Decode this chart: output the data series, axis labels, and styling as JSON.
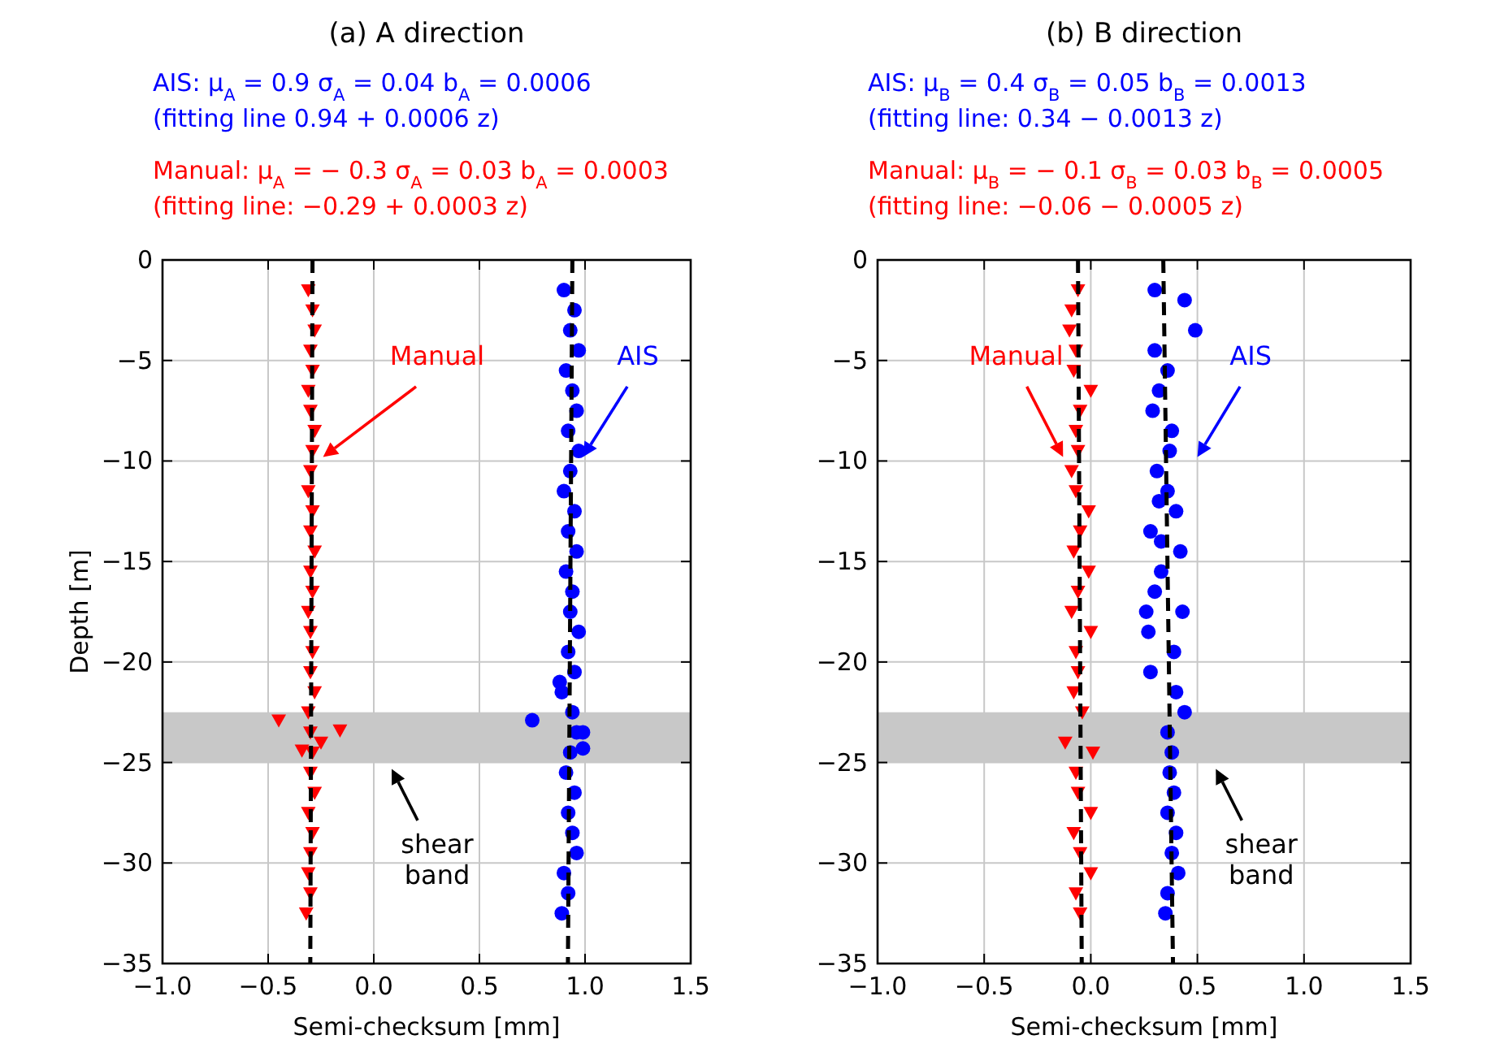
{
  "chart_data": [
    {
      "type": "scatter",
      "title": "(a) A direction",
      "xlabel": "Semi-checksum [mm]",
      "ylabel": "Depth [m]",
      "annotations": [
        "AIS: μ$_{A}$ = 0.9 σ$_{A}$ = 0.04 b$_{A}$ = 0.0006",
        "(fitting line 0.94 + 0.0006 z)",
        "Manual: μ$_{A}$ = − 0.3 σ$_{A}$ = 0.03 b$_{A}$ = 0.0003",
        "(fitting line: −0.29 + 0.0003 z)",
        "shear band"
      ],
      "xlim": [
        -1,
        1.5
      ],
      "xticks": [
        {
          "value": -1,
          "label": "−1.0"
        },
        {
          "value": -0.5,
          "label": "−0.5"
        },
        {
          "value": 0,
          "label": "0.0"
        },
        {
          "value": 0.5,
          "label": "0.5"
        },
        {
          "value": 1,
          "label": "1.0"
        },
        {
          "value": 1.5,
          "label": "1.5"
        }
      ],
      "ylim": [
        -35,
        0
      ],
      "yticks": [
        {
          "value": -35,
          "label": "−35"
        },
        {
          "value": -30,
          "label": "−30"
        },
        {
          "value": -25,
          "label": "−25"
        },
        {
          "value": -20,
          "label": "−20"
        },
        {
          "value": -15,
          "label": "−15"
        },
        {
          "value": -10,
          "label": "−10"
        },
        {
          "value": -5,
          "label": "−5"
        },
        0
      ],
      "grid": true,
      "bands": [
        {
          "axis": "y",
          "from": -25,
          "to": -22.5,
          "color": "#c8c8c8"
        }
      ],
      "series": [
        {
          "name": "AIS",
          "type": "scatter",
          "color": "#0000ff",
          "marker": "circle",
          "x": [
            0.9,
            0.95,
            0.93,
            0.97,
            0.91,
            0.94,
            0.96,
            0.92,
            0.97,
            0.93,
            0.9,
            0.95,
            0.92,
            0.96,
            0.91,
            0.94,
            0.93,
            0.97,
            0.92,
            0.95,
            0.89,
            0.94,
            0.96,
            0.93,
            0.91,
            0.95,
            0.92,
            0.94,
            0.96,
            0.9,
            0.92,
            0.89,
            0.75,
            0.99,
            0.99,
            0.88
          ],
          "values": [
            -1.5,
            -2.5,
            -3.5,
            -4.5,
            -5.5,
            -6.5,
            -7.5,
            -8.5,
            -9.5,
            -10.5,
            -11.5,
            -12.5,
            -13.5,
            -14.5,
            -15.5,
            -16.5,
            -17.5,
            -18.5,
            -19.5,
            -20.5,
            -21.5,
            -22.5,
            -23.5,
            -24.5,
            -25.5,
            -26.5,
            -27.5,
            -28.5,
            -29.5,
            -30.5,
            -31.5,
            -32.5,
            -22.9,
            -23.5,
            -24.3,
            -21.0
          ]
        },
        {
          "name": "Manual",
          "type": "scatter",
          "color": "#ff0000",
          "marker": "triangle",
          "x": [
            -0.31,
            -0.29,
            -0.28,
            -0.3,
            -0.29,
            -0.31,
            -0.3,
            -0.28,
            -0.29,
            -0.3,
            -0.31,
            -0.29,
            -0.3,
            -0.28,
            -0.3,
            -0.29,
            -0.31,
            -0.3,
            -0.29,
            -0.3,
            -0.28,
            -0.31,
            -0.3,
            -0.29,
            -0.3,
            -0.28,
            -0.31,
            -0.29,
            -0.3,
            -0.31,
            -0.3,
            -0.32,
            -0.45,
            -0.25,
            -0.16,
            -0.34
          ],
          "values": [
            -1.5,
            -2.5,
            -3.5,
            -4.5,
            -5.5,
            -6.5,
            -7.5,
            -8.5,
            -9.5,
            -10.5,
            -11.5,
            -12.5,
            -13.5,
            -14.5,
            -15.5,
            -16.5,
            -17.5,
            -18.5,
            -19.5,
            -20.5,
            -21.5,
            -22.5,
            -23.5,
            -24.5,
            -25.5,
            -26.5,
            -27.5,
            -28.5,
            -29.5,
            -30.5,
            -31.5,
            -32.5,
            -22.9,
            -24.0,
            -23.4,
            -24.4
          ]
        },
        {
          "type": "line",
          "color": "#000000",
          "line_style": "dashed",
          "x": [
            0.94,
            0.919
          ],
          "values": [
            0,
            -35
          ]
        },
        {
          "type": "line",
          "color": "#000000",
          "line_style": "dashed",
          "x": [
            -0.29,
            -0.3005
          ],
          "values": [
            0,
            -35
          ]
        }
      ]
    },
    {
      "type": "scatter",
      "title": "(b) B direction",
      "xlabel": "Semi-checksum [mm]",
      "annotations": [
        "AIS: μ$_{B}$ = 0.4 σ$_{B}$ = 0.05 b$_{B}$ = 0.0013",
        "(fitting line: 0.34 − 0.0013 z)",
        "Manual: μ$_{B}$ = − 0.1 σ$_{B}$ = 0.03 b$_{B}$ = 0.0005",
        "(fitting line: −0.06 − 0.0005 z)",
        "shear band"
      ],
      "xlim": [
        -1,
        1.5
      ],
      "xticks": [
        {
          "value": -1,
          "label": "−1.0"
        },
        {
          "value": -0.5,
          "label": "−0.5"
        },
        {
          "value": 0,
          "label": "0.0"
        },
        {
          "value": 0.5,
          "label": "0.5"
        },
        {
          "value": 1,
          "label": "1.0"
        },
        {
          "value": 1.5,
          "label": "1.5"
        }
      ],
      "ylim": [
        -35,
        0
      ],
      "yticks": [
        {
          "value": -35,
          "label": "−35"
        },
        {
          "value": -30,
          "label": "−30"
        },
        {
          "value": -25,
          "label": "−25"
        },
        {
          "value": -20,
          "label": "−20"
        },
        {
          "value": -15,
          "label": "−15"
        },
        {
          "value": -10,
          "label": "−10"
        },
        {
          "value": -5,
          "label": "−5"
        },
        0
      ],
      "grid": true,
      "bands": [
        {
          "axis": "y",
          "from": -25,
          "to": -22.5,
          "color": "#c8c8c8"
        }
      ],
      "series": [
        {
          "name": "AIS",
          "type": "scatter",
          "color": "#0000ff",
          "marker": "circle",
          "x": [
            0.3,
            0.44,
            0.49,
            0.3,
            0.36,
            0.32,
            0.29,
            0.38,
            0.37,
            0.31,
            0.36,
            0.4,
            0.28,
            0.42,
            0.33,
            0.3,
            0.43,
            0.27,
            0.39,
            0.28,
            0.4,
            0.44,
            0.36,
            0.38,
            0.37,
            0.39,
            0.36,
            0.4,
            0.38,
            0.41,
            0.36,
            0.35,
            0.26,
            0.32,
            0.33
          ],
          "values": [
            -1.5,
            -2.0,
            -3.5,
            -4.5,
            -5.5,
            -6.5,
            -7.5,
            -8.5,
            -9.5,
            -10.5,
            -11.5,
            -12.5,
            -13.5,
            -14.5,
            -15.5,
            -16.5,
            -17.5,
            -18.5,
            -19.5,
            -20.5,
            -21.5,
            -22.5,
            -23.5,
            -24.5,
            -25.5,
            -26.5,
            -27.5,
            -28.5,
            -29.5,
            -30.5,
            -31.5,
            -32.5,
            -17.5,
            -12.0,
            -14.0
          ]
        },
        {
          "name": "Manual",
          "type": "scatter",
          "color": "#ff0000",
          "marker": "triangle",
          "x": [
            -0.06,
            -0.09,
            -0.1,
            -0.07,
            -0.08,
            0.0,
            -0.05,
            -0.07,
            -0.06,
            -0.09,
            -0.01,
            -0.07,
            -0.05,
            -0.08,
            -0.01,
            -0.06,
            -0.09,
            0.0,
            -0.07,
            -0.06,
            -0.08,
            -0.04,
            -0.12,
            0.01,
            -0.07,
            -0.06,
            0.0,
            -0.08,
            -0.05,
            0.0,
            -0.07,
            -0.05
          ],
          "values": [
            -1.5,
            -2.5,
            -3.5,
            -4.5,
            -5.5,
            -6.5,
            -7.5,
            -8.5,
            -9.5,
            -10.5,
            -12.5,
            -11.5,
            -13.5,
            -14.5,
            -15.5,
            -16.5,
            -17.5,
            -18.5,
            -19.5,
            -20.5,
            -21.5,
            -22.5,
            -24.0,
            -24.5,
            -25.5,
            -26.5,
            -27.5,
            -28.5,
            -29.5,
            -30.5,
            -31.5,
            -32.5
          ]
        },
        {
          "type": "line",
          "color": "#000000",
          "line_style": "dashed",
          "x": [
            0.34,
            0.3855
          ],
          "values": [
            0,
            -35
          ]
        },
        {
          "type": "line",
          "color": "#000000",
          "line_style": "dashed",
          "x": [
            -0.06,
            -0.0425
          ],
          "values": [
            0,
            -35
          ]
        }
      ]
    }
  ]
}
